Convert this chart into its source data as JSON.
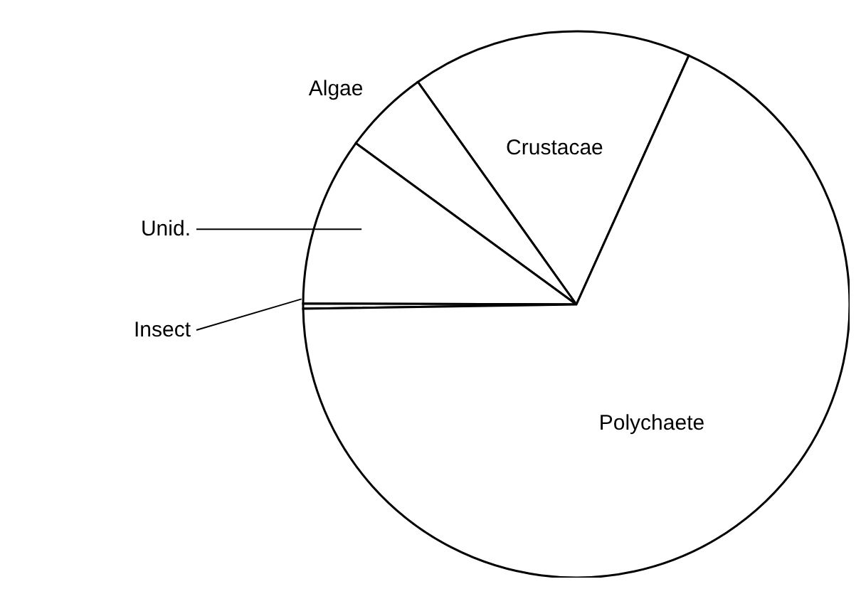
{
  "chart_data": {
    "type": "pie",
    "categories": [
      "Crustacae",
      "Algae",
      "Unid.",
      "Insect",
      "Polychaete"
    ],
    "values": [
      16.6,
      5.1,
      10.0,
      0.3,
      68.0
    ],
    "colors": [
      "#ffffff",
      "#ffffff",
      "#ffffff",
      "#ffffff",
      "#ffffff"
    ]
  }
}
